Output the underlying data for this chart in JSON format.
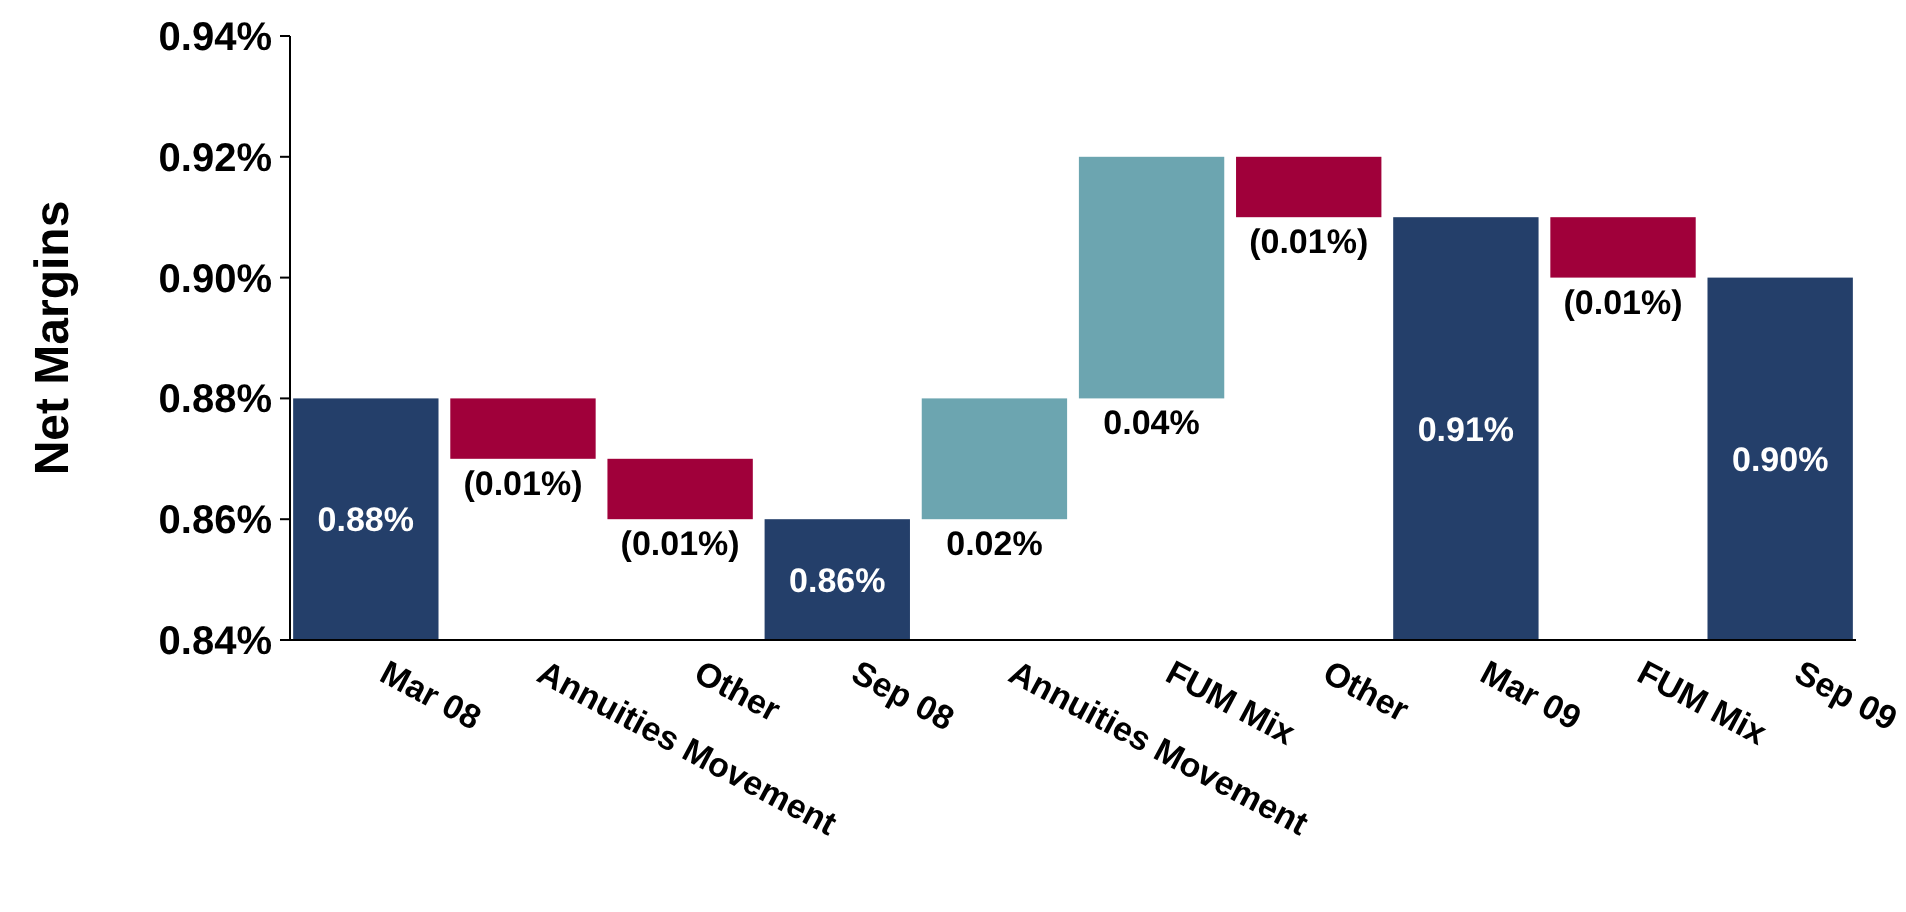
{
  "chart_data": {
    "type": "bar",
    "ylabel": "Net Margins",
    "categories": [
      "Mar 08",
      "Annuities Movement",
      "Other",
      "Sep 08",
      "Annuities Movement",
      "FUM Mix",
      "Other",
      "Mar 09",
      "FUM Mix",
      "Sep 09"
    ],
    "values": [
      0.88,
      -0.01,
      -0.01,
      0.86,
      0.02,
      0.04,
      -0.01,
      0.91,
      -0.01,
      0.9
    ],
    "base": [
      null,
      0.88,
      0.87,
      null,
      0.86,
      0.88,
      0.92,
      null,
      0.91,
      null
    ],
    "colors": [
      "#243f6a",
      "#a0003a",
      "#a0003a",
      "#243f6a",
      "#6ca5b0",
      "#6ca5b0",
      "#a0003a",
      "#243f6a",
      "#a0003a",
      "#243f6a"
    ],
    "value_labels": [
      "0.88%",
      "(0.01%)",
      "(0.01%)",
      "0.86%",
      "0.02%",
      "0.04%",
      "(0.01%)",
      "0.91%",
      "(0.01%)",
      "0.90%"
    ],
    "ylim": [
      0.84,
      0.94
    ],
    "yticks": [
      {
        "value": 0.84,
        "label": "0.84%"
      },
      {
        "value": 0.86,
        "label": "0.86%"
      },
      {
        "value": 0.88,
        "label": "0.88%"
      },
      {
        "value": 0.9,
        "label": "0.90%"
      },
      {
        "value": 0.92,
        "label": "0.92%"
      },
      {
        "value": 0.94,
        "label": "0.94%"
      }
    ],
    "grid": false
  }
}
